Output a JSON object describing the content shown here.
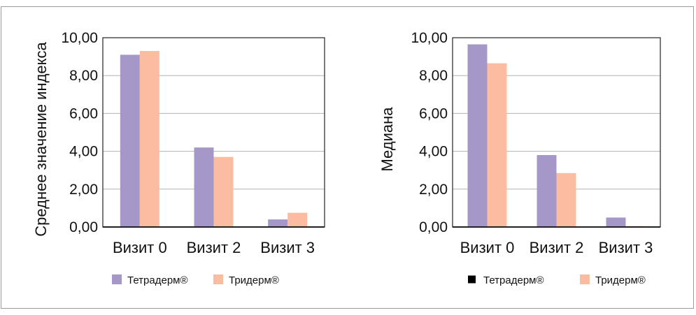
{
  "colors": {
    "series1": "#a598c9",
    "series2": "#fbbca2",
    "axis": "#222222",
    "grid": "#b3b3b3"
  },
  "chart_data": [
    {
      "type": "bar",
      "categories": [
        "Визит 0",
        "Визит 2",
        "Визит 3"
      ],
      "series": [
        {
          "name": "Тетрадерм®",
          "values": [
            9.1,
            4.2,
            0.4
          ],
          "color": "#a598c9"
        },
        {
          "name": "Тридерм®",
          "values": [
            9.3,
            3.7,
            0.75
          ],
          "color": "#fbbca2"
        }
      ],
      "ylabel": "Среднее значение индекса",
      "xlabel": "",
      "ylim": [
        0,
        10
      ],
      "yticks": [
        "0,00",
        "2,00",
        "4,00",
        "6,00",
        "8,00",
        "10,00"
      ],
      "grid": true,
      "legend_placement": "bottom",
      "legend_markers": [
        "swatch",
        "swatch"
      ]
    },
    {
      "type": "bar",
      "categories": [
        "Визит 0",
        "Визит 2",
        "Визит 3"
      ],
      "series": [
        {
          "name": "Тетрадерм®",
          "values": [
            9.65,
            3.8,
            0.5
          ],
          "color": "#a598c9"
        },
        {
          "name": "Тридерм®",
          "values": [
            8.65,
            2.85,
            0.05
          ],
          "color": "#fbbca2"
        }
      ],
      "ylabel": "Медиана",
      "xlabel": "",
      "ylim": [
        0,
        10
      ],
      "yticks": [
        "0,00",
        "2,00",
        "4,00",
        "6,00",
        "8,00",
        "10,00"
      ],
      "grid": true,
      "legend_placement": "bottom",
      "legend_markers": [
        "black-square",
        "swatch"
      ]
    }
  ]
}
